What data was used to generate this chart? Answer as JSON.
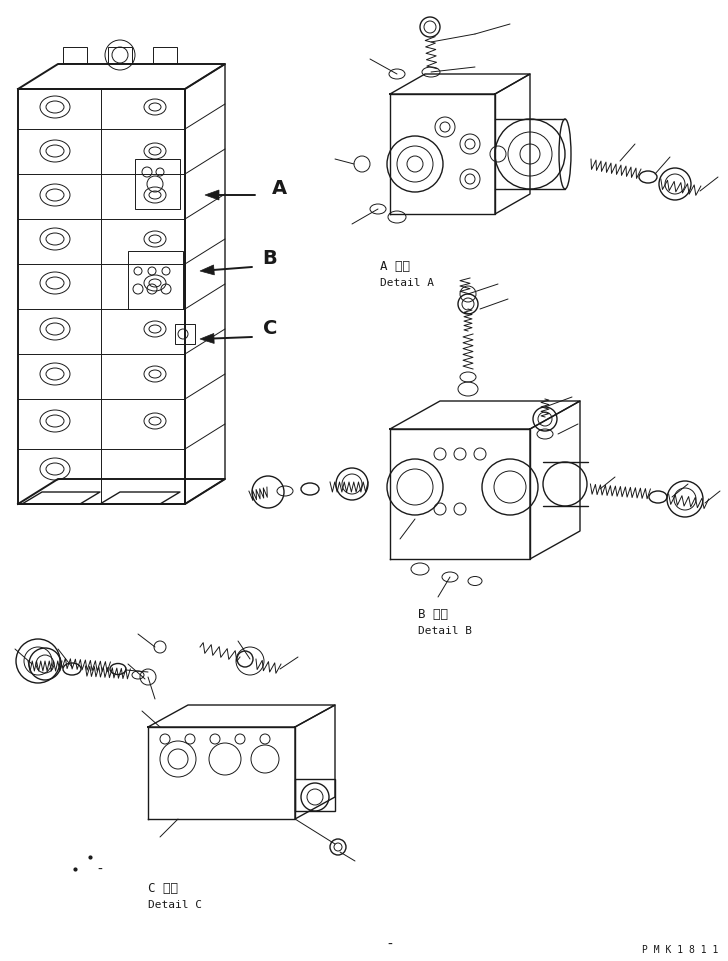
{
  "bg_color": "#ffffff",
  "line_color": "#1a1a1a",
  "label_A_jp": "A 詳細",
  "label_A_en": "Detail A",
  "label_B_jp": "B 詳細",
  "label_B_en": "Detail B",
  "label_C_jp": "C 詳細",
  "label_C_en": "Detail C",
  "watermark": "P M K 1 8 1 1",
  "arrow_A_label": "A",
  "arrow_B_label": "B",
  "arrow_C_label": "C",
  "fig_width": 7.28,
  "fig_height": 9.62,
  "dpi": 100
}
